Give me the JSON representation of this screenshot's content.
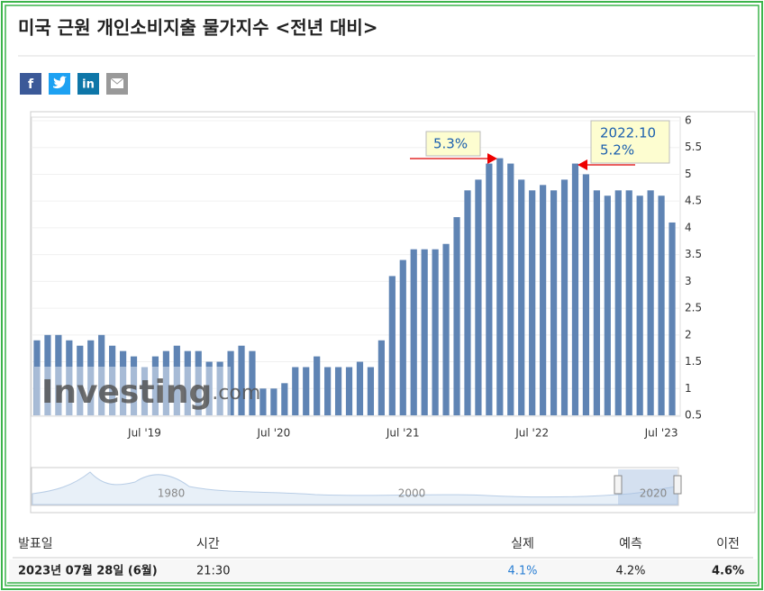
{
  "header": {
    "title": "미국 근원 개인소비지출 물가지수 <전년 대비>"
  },
  "share_buttons": [
    "f",
    "in"
  ],
  "chart_data": {
    "type": "bar",
    "color": "#5f84b4",
    "grid": true,
    "categories": [
      null,
      null,
      null,
      null,
      null,
      null,
      null,
      null,
      null,
      null,
      "Jul '19",
      null,
      null,
      null,
      null,
      null,
      null,
      null,
      null,
      null,
      null,
      null,
      "Jul '20",
      null,
      null,
      null,
      null,
      null,
      null,
      null,
      null,
      null,
      null,
      null,
      "Jul '21",
      null,
      null,
      null,
      null,
      null,
      null,
      null,
      null,
      null,
      null,
      null,
      "Jul '22",
      null,
      null,
      null,
      null,
      null,
      null,
      null,
      null,
      null,
      null,
      null,
      "Jul '23",
      null
    ],
    "values": [
      1.9,
      2.0,
      2.0,
      1.9,
      1.8,
      1.9,
      2.0,
      1.8,
      1.7,
      1.6,
      1.4,
      1.6,
      1.7,
      1.8,
      1.7,
      1.7,
      1.5,
      1.5,
      1.7,
      1.8,
      1.7,
      1.0,
      1.0,
      1.1,
      1.4,
      1.4,
      1.6,
      1.4,
      1.4,
      1.4,
      1.5,
      1.4,
      1.9,
      3.1,
      3.4,
      3.6,
      3.6,
      3.6,
      3.7,
      4.2,
      4.7,
      4.9,
      5.2,
      5.3,
      5.2,
      4.9,
      4.7,
      4.8,
      4.7,
      4.9,
      5.2,
      5.0,
      4.7,
      4.6,
      4.7,
      4.7,
      4.6,
      4.7,
      4.6,
      4.1
    ],
    "ylim": [
      0.5,
      6
    ],
    "yticks": [
      0.5,
      1,
      1.5,
      2,
      2.5,
      3,
      3.5,
      4,
      4.5,
      5,
      5.5,
      6
    ],
    "watermark": [
      "Investing",
      ".com"
    ],
    "annotations": [
      {
        "lines": [
          "5.3%"
        ]
      },
      {
        "lines": [
          "2022.10",
          "5.2%"
        ]
      }
    ],
    "navigator_labels": [
      "1980",
      "2000",
      "2020"
    ]
  },
  "table": {
    "columns": [
      "발표일",
      "시간",
      "실제",
      "예측",
      "이전"
    ],
    "rows": [
      [
        "2023년 07월 28일 (6월)",
        "21:30",
        "4.1%",
        "4.2%",
        "4.6%"
      ]
    ]
  }
}
